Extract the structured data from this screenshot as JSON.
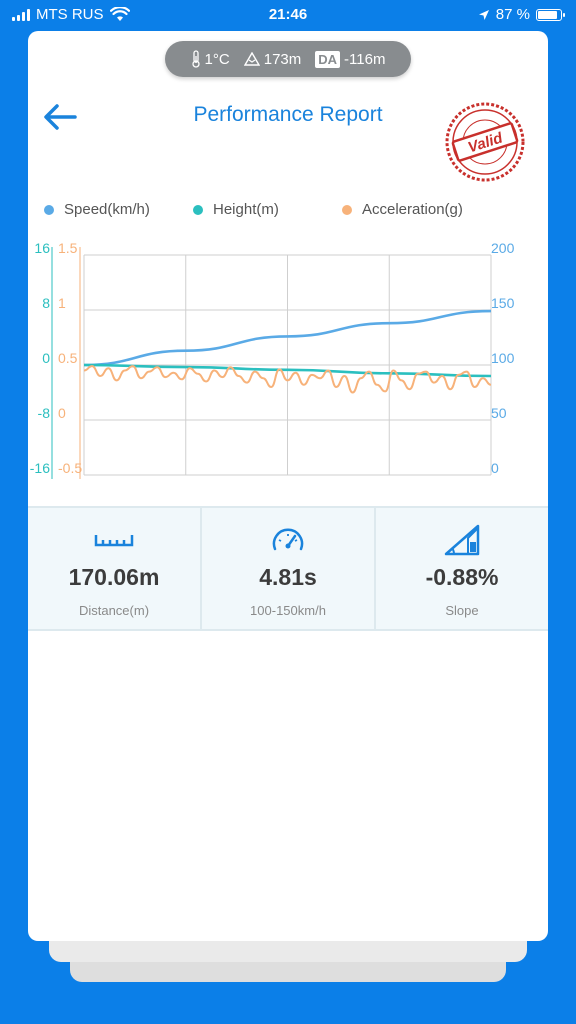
{
  "status_bar": {
    "carrier": "MTS RUS",
    "time": "21:46",
    "battery_text": "87 %",
    "battery_level": 0.87
  },
  "conditions": {
    "temperature": "1°C",
    "altitude": "173m",
    "da_label": "DA",
    "density_altitude": "-116m"
  },
  "header": {
    "title": "Performance Report",
    "stamp_text": "Valid"
  },
  "legend": [
    {
      "label": "Speed(km/h)",
      "color": "#5aaae6"
    },
    {
      "label": "Height(m)",
      "color": "#2bbfbf"
    },
    {
      "label": "Acceleration(g)",
      "color": "#f7b27a"
    }
  ],
  "chart_data": {
    "type": "line",
    "grid": true,
    "legend_position": "top",
    "axes": {
      "height_left": {
        "ticks": [
          "16",
          "8",
          "0",
          "-8",
          "-16"
        ],
        "range": [
          -16,
          16
        ],
        "color": "#2bbfbf"
      },
      "accel_left": {
        "ticks": [
          "1.5",
          "1",
          "0.5",
          "0",
          "-0.5"
        ],
        "range": [
          -0.5,
          1.5
        ],
        "color": "#f7b27a"
      },
      "speed_right": {
        "ticks": [
          "200",
          "150",
          "100",
          "50",
          "0"
        ],
        "range": [
          0,
          200
        ],
        "color": "#5aaae6"
      }
    },
    "x_range": [
      0,
      1
    ],
    "series": [
      {
        "name": "Speed(km/h)",
        "axis": "speed_right",
        "color": "#5aaae6",
        "x": [
          0,
          0.25,
          0.5,
          0.75,
          1.0
        ],
        "y": [
          100,
          113,
          126,
          138,
          149
        ]
      },
      {
        "name": "Height(m)",
        "axis": "height_left",
        "color": "#2bbfbf",
        "x": [
          0,
          0.25,
          0.5,
          0.75,
          1.0
        ],
        "y": [
          0,
          -0.3,
          -0.7,
          -1.2,
          -1.6
        ]
      },
      {
        "name": "Acceleration(g)",
        "axis": "accel_left",
        "color": "#f7b27a",
        "x": [
          0,
          0.02,
          0.04,
          0.06,
          0.08,
          0.1,
          0.12,
          0.14,
          0.16,
          0.18,
          0.2,
          0.22,
          0.24,
          0.26,
          0.28,
          0.3,
          0.32,
          0.34,
          0.36,
          0.38,
          0.4,
          0.42,
          0.44,
          0.46,
          0.48,
          0.5,
          0.52,
          0.54,
          0.56,
          0.58,
          0.6,
          0.62,
          0.64,
          0.66,
          0.68,
          0.7,
          0.72,
          0.74,
          0.76,
          0.78,
          0.8,
          0.82,
          0.84,
          0.86,
          0.88,
          0.9,
          0.92,
          0.94,
          0.96,
          0.98,
          1.0
        ],
        "y": [
          0.45,
          0.49,
          0.4,
          0.47,
          0.36,
          0.45,
          0.49,
          0.38,
          0.44,
          0.48,
          0.39,
          0.43,
          0.37,
          0.47,
          0.42,
          0.35,
          0.45,
          0.39,
          0.48,
          0.4,
          0.34,
          0.44,
          0.38,
          0.3,
          0.46,
          0.36,
          0.43,
          0.32,
          0.41,
          0.38,
          0.45,
          0.3,
          0.4,
          0.25,
          0.38,
          0.44,
          0.32,
          0.26,
          0.45,
          0.36,
          0.28,
          0.42,
          0.44,
          0.34,
          0.4,
          0.28,
          0.41,
          0.44,
          0.3,
          0.38,
          0.32
        ]
      }
    ]
  },
  "stats": [
    {
      "icon": "ruler-icon",
      "value": "170.06m",
      "label": "Distance(m)"
    },
    {
      "icon": "speedometer-icon",
      "value": "4.81s",
      "label": "100-150km/h"
    },
    {
      "icon": "slope-icon",
      "value": "-0.88%",
      "label": "Slope"
    }
  ],
  "colors": {
    "background": "#0b7fe8",
    "accent": "#1a83dc",
    "stamp": "#c8302c"
  }
}
